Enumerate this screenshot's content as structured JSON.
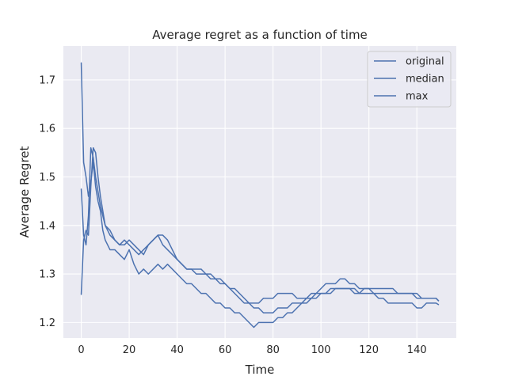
{
  "chart_data": {
    "type": "line",
    "title": "Average regret as a function of time",
    "xlabel": "Time",
    "ylabel": "Average Regret",
    "xlim": [
      -7.45,
      156.45
    ],
    "ylim": [
      1.168,
      1.77
    ],
    "xticks": [
      0,
      20,
      40,
      60,
      80,
      100,
      120,
      140
    ],
    "yticks": [
      1.2,
      1.3,
      1.4,
      1.5,
      1.6,
      1.7
    ],
    "ytick_labels": [
      "1.2",
      "1.3",
      "1.4",
      "1.5",
      "1.6",
      "1.7"
    ],
    "grid": true,
    "legend_position": "top-right",
    "line_color": "#4c72b0",
    "background_color": "#eaeaf2",
    "grid_color": "#ffffff",
    "series": [
      {
        "name": "original",
        "x": [
          0,
          1,
          2,
          3,
          4,
          5,
          6,
          7,
          8,
          9,
          10,
          12,
          14,
          16,
          18,
          20,
          22,
          24,
          26,
          28,
          30,
          32,
          34,
          36,
          38,
          40,
          42,
          44,
          46,
          48,
          50,
          52,
          54,
          56,
          58,
          60,
          62,
          64,
          66,
          68,
          70,
          72,
          74,
          76,
          78,
          80,
          82,
          84,
          86,
          88,
          90,
          92,
          94,
          96,
          98,
          100,
          102,
          104,
          106,
          108,
          110,
          112,
          114,
          116,
          118,
          120,
          122,
          124,
          126,
          128,
          130,
          132,
          134,
          136,
          138,
          140,
          142,
          144,
          146,
          148,
          149
        ],
        "y": [
          1.735,
          1.53,
          1.5,
          1.46,
          1.49,
          1.53,
          1.48,
          1.45,
          1.43,
          1.39,
          1.37,
          1.35,
          1.35,
          1.34,
          1.33,
          1.35,
          1.32,
          1.3,
          1.31,
          1.3,
          1.31,
          1.32,
          1.31,
          1.32,
          1.31,
          1.3,
          1.29,
          1.28,
          1.28,
          1.27,
          1.26,
          1.26,
          1.25,
          1.24,
          1.24,
          1.23,
          1.23,
          1.22,
          1.22,
          1.21,
          1.2,
          1.19,
          1.2,
          1.2,
          1.2,
          1.2,
          1.21,
          1.21,
          1.22,
          1.22,
          1.23,
          1.24,
          1.24,
          1.25,
          1.25,
          1.26,
          1.26,
          1.27,
          1.27,
          1.27,
          1.27,
          1.27,
          1.26,
          1.26,
          1.27,
          1.27,
          1.27,
          1.27,
          1.27,
          1.27,
          1.27,
          1.26,
          1.26,
          1.26,
          1.26,
          1.26,
          1.25,
          1.25,
          1.25,
          1.25,
          1.245
        ]
      },
      {
        "name": "median",
        "x": [
          0,
          1,
          2,
          3,
          4,
          5,
          6,
          7,
          8,
          9,
          10,
          12,
          14,
          16,
          18,
          20,
          22,
          24,
          26,
          28,
          30,
          32,
          34,
          36,
          38,
          40,
          42,
          44,
          46,
          48,
          50,
          52,
          54,
          56,
          58,
          60,
          62,
          64,
          66,
          68,
          70,
          72,
          74,
          76,
          78,
          80,
          82,
          84,
          86,
          88,
          90,
          92,
          94,
          96,
          98,
          100,
          102,
          104,
          106,
          108,
          110,
          112,
          114,
          116,
          118,
          120,
          122,
          124,
          126,
          128,
          130,
          132,
          134,
          136,
          138,
          140,
          142,
          144,
          146,
          148,
          149
        ],
        "y": [
          1.475,
          1.38,
          1.36,
          1.42,
          1.56,
          1.54,
          1.5,
          1.47,
          1.44,
          1.42,
          1.4,
          1.38,
          1.37,
          1.36,
          1.36,
          1.37,
          1.36,
          1.35,
          1.34,
          1.36,
          1.37,
          1.38,
          1.36,
          1.35,
          1.34,
          1.33,
          1.32,
          1.31,
          1.31,
          1.3,
          1.3,
          1.3,
          1.3,
          1.29,
          1.29,
          1.28,
          1.27,
          1.27,
          1.26,
          1.25,
          1.24,
          1.23,
          1.23,
          1.22,
          1.22,
          1.22,
          1.23,
          1.23,
          1.23,
          1.24,
          1.24,
          1.24,
          1.25,
          1.25,
          1.26,
          1.26,
          1.26,
          1.26,
          1.27,
          1.27,
          1.27,
          1.27,
          1.27,
          1.26,
          1.26,
          1.26,
          1.26,
          1.25,
          1.25,
          1.24,
          1.24,
          1.24,
          1.24,
          1.24,
          1.24,
          1.23,
          1.23,
          1.24,
          1.24,
          1.24,
          1.237
        ]
      },
      {
        "name": "max",
        "x": [
          0,
          1,
          2,
          3,
          4,
          5,
          6,
          7,
          8,
          9,
          10,
          12,
          14,
          16,
          18,
          20,
          22,
          24,
          26,
          28,
          30,
          32,
          34,
          36,
          38,
          40,
          42,
          44,
          46,
          48,
          50,
          52,
          54,
          56,
          58,
          60,
          62,
          64,
          66,
          68,
          70,
          72,
          74,
          76,
          78,
          80,
          82,
          84,
          86,
          88,
          90,
          92,
          94,
          96,
          98,
          100,
          102,
          104,
          106,
          108,
          110,
          112,
          114,
          116,
          118,
          120,
          122,
          124,
          126,
          128,
          130,
          132,
          134,
          136,
          138,
          140,
          142,
          144,
          146,
          148,
          149
        ],
        "y": [
          1.258,
          1.37,
          1.39,
          1.38,
          1.48,
          1.56,
          1.55,
          1.5,
          1.46,
          1.43,
          1.4,
          1.39,
          1.37,
          1.36,
          1.37,
          1.36,
          1.35,
          1.34,
          1.35,
          1.36,
          1.37,
          1.38,
          1.38,
          1.37,
          1.35,
          1.33,
          1.32,
          1.31,
          1.31,
          1.31,
          1.31,
          1.3,
          1.29,
          1.29,
          1.28,
          1.28,
          1.27,
          1.26,
          1.25,
          1.24,
          1.24,
          1.24,
          1.24,
          1.25,
          1.25,
          1.25,
          1.26,
          1.26,
          1.26,
          1.26,
          1.25,
          1.25,
          1.25,
          1.26,
          1.26,
          1.27,
          1.28,
          1.28,
          1.28,
          1.29,
          1.29,
          1.28,
          1.28,
          1.27,
          1.27,
          1.27,
          1.26,
          1.26,
          1.26,
          1.26,
          1.26,
          1.26,
          1.26,
          1.26,
          1.26,
          1.25,
          1.25,
          1.25,
          1.25,
          1.25,
          1.245
        ]
      }
    ]
  }
}
